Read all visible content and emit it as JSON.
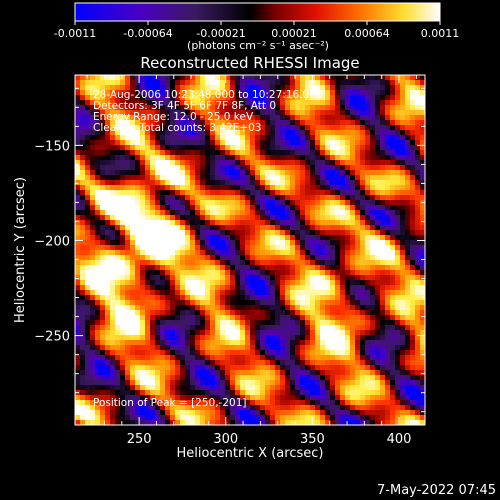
{
  "chart_data": {
    "type": "heatmap",
    "title": "Reconstructed RHESSI Image",
    "xlabel": "Heliocentric X (arcsec)",
    "ylabel": "Heliocentric Y (arcsec)",
    "xlim": [
      213,
      415
    ],
    "ylim": [
      -297,
      -113
    ],
    "x_ticks": [
      250,
      300,
      350,
      400
    ],
    "y_ticks": [
      -150,
      -200,
      -250
    ],
    "colorbar": {
      "range": [
        -0.0011,
        0.0011
      ],
      "ticks": [
        "-0.0011",
        "-0.00064",
        "-0.00021",
        "0.00021",
        "0.00064",
        "0.0011"
      ],
      "unit_label": "(photons cm⁻² s⁻¹ asec⁻²)",
      "colors": [
        "#0000ff",
        "#5500b0",
        "#3a1860",
        "#000000",
        "#a00000",
        "#ff3000",
        "#ff9000",
        "#ffee40",
        "#ffffff"
      ]
    },
    "annotations": [
      "28-Aug-2006 10:23:48.000 to 10:27:16.000",
      "Detectors: 3F 4F 5F 6F 7F 8F, Att 0",
      "Energy Range: 12.0 - 25.0 keV",
      "Clean     Total counts: 3.42E+03"
    ],
    "peak_label": "Position of Peak = [250,-201]",
    "peak": [
      250,
      -201
    ]
  },
  "footer": {
    "timestamp": "7-May-2022 07:45"
  }
}
